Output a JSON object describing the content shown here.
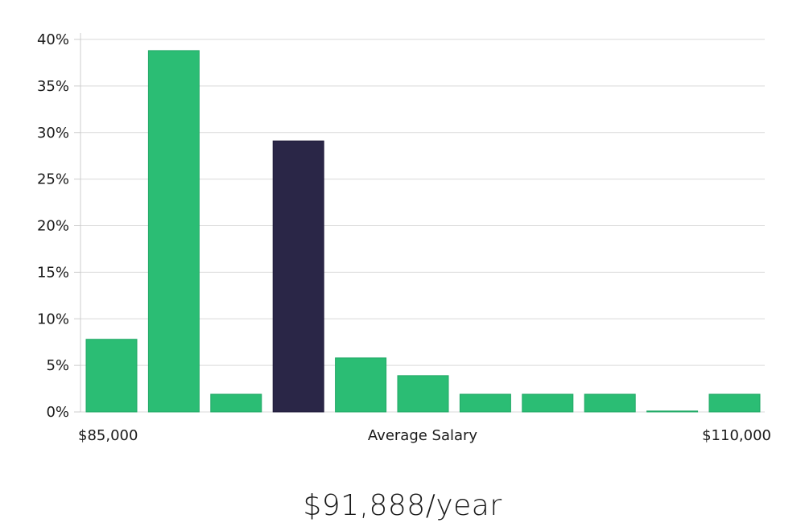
{
  "chart_data": {
    "type": "bar",
    "title": "",
    "xlabel": "Average Salary",
    "ylabel": "",
    "ylim": [
      0,
      40
    ],
    "y_ticks": [
      0,
      5,
      10,
      15,
      20,
      25,
      30,
      35,
      40
    ],
    "y_tick_format": "{v}%",
    "x_min_label": "$85,000",
    "x_max_label": "$110,000",
    "values": [
      7.8,
      38.8,
      1.9,
      29.1,
      5.8,
      3.9,
      1.9,
      1.9,
      1.9,
      0.1,
      1.9
    ],
    "highlight_index": 3,
    "colors": {
      "bar": "#2bbd74",
      "highlight": "#2a2647",
      "grid": "#d9d9d9",
      "axis": "#cccccc"
    }
  },
  "summary": {
    "average_salary": "$91,888/year"
  }
}
